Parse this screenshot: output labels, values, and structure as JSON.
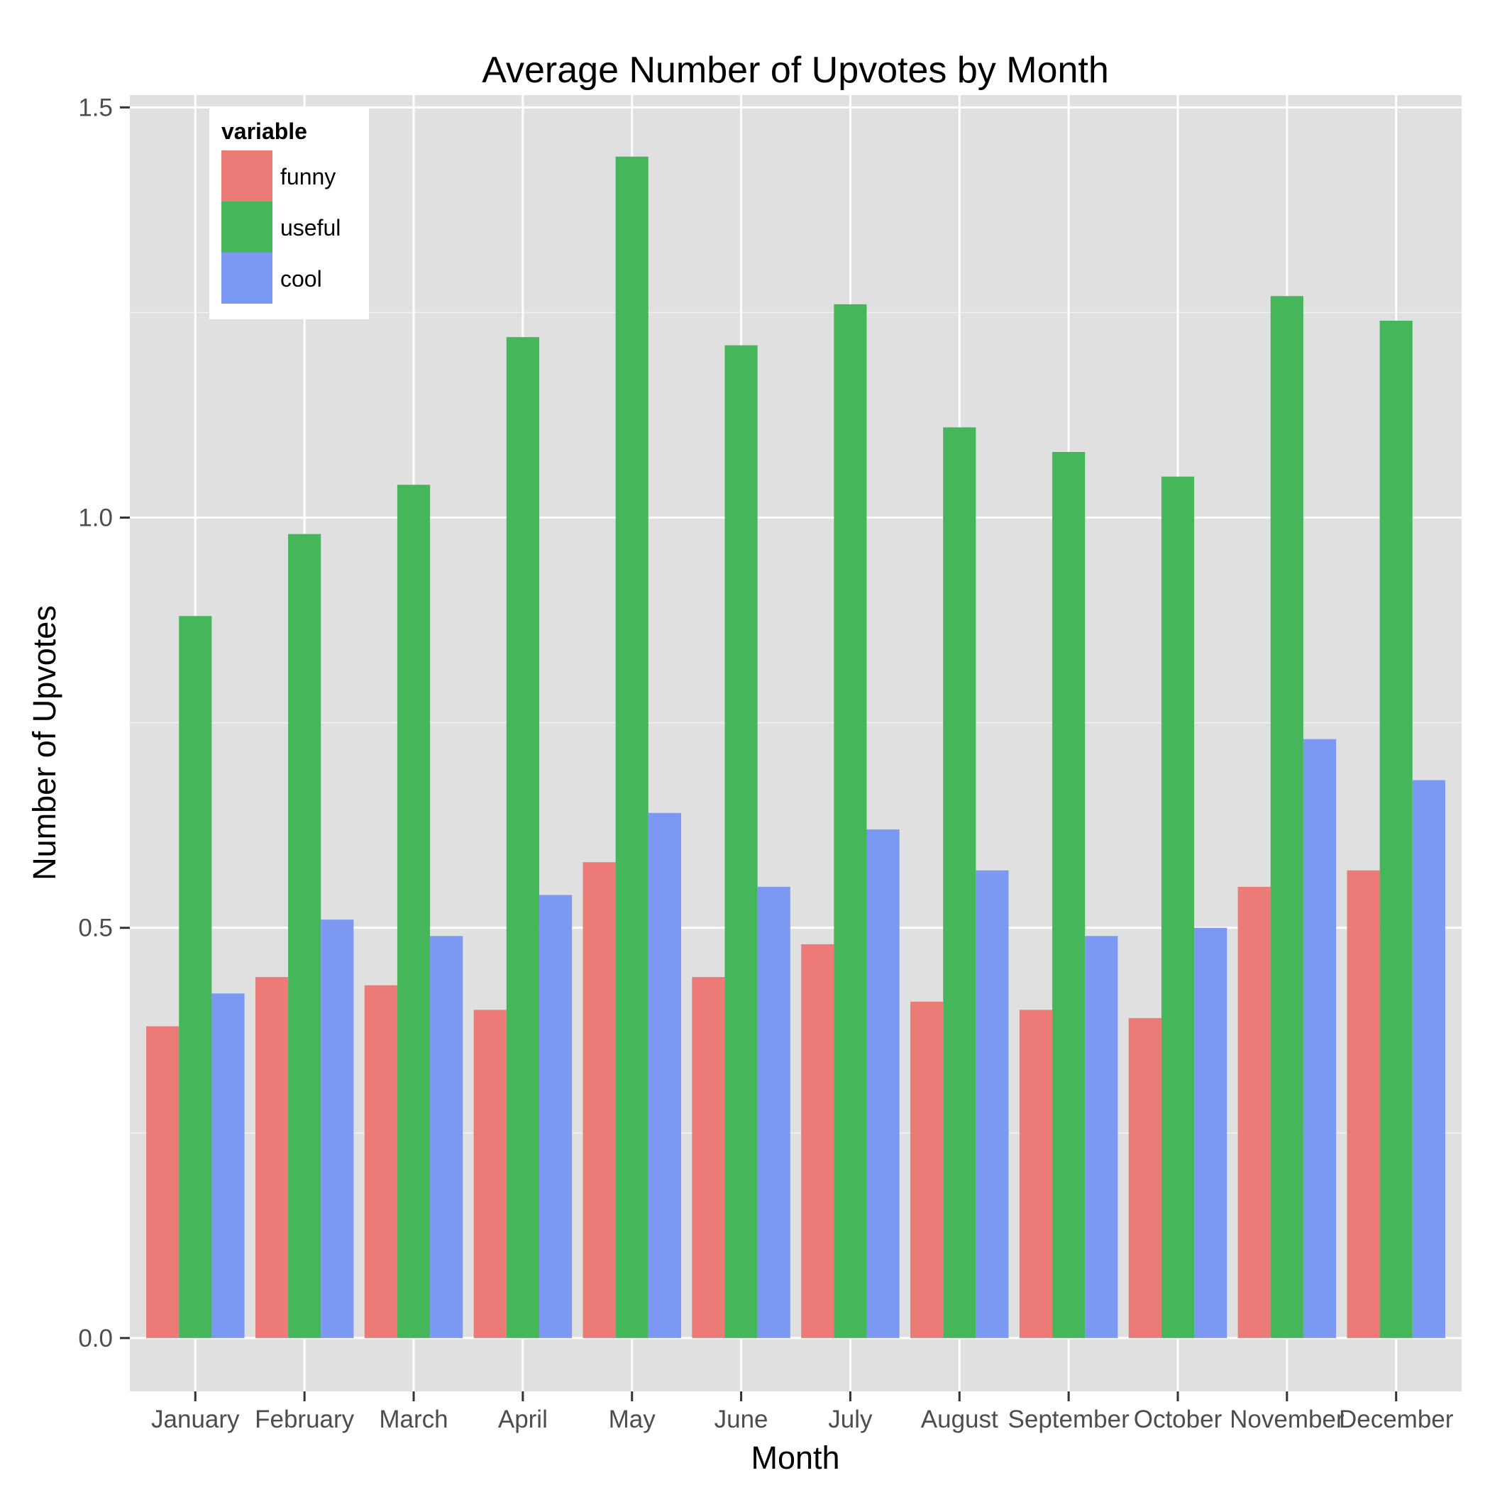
{
  "chart_data": {
    "type": "bar",
    "title": "Average Number of Upvotes by Month",
    "xlabel": "Month",
    "ylabel": "Number of Upvotes",
    "ylim": [
      -0.065,
      1.515
    ],
    "y_ticks": [
      "0.0",
      "0.5",
      "1.0",
      "1.5"
    ],
    "y_tick_values": [
      0,
      0.5,
      1.0,
      1.5
    ],
    "grid": true,
    "legend_placement": "top-left",
    "legend_title": "variable",
    "categories": [
      "January",
      "February",
      "March",
      "April",
      "May",
      "June",
      "July",
      "August",
      "September",
      "October",
      "November",
      "December"
    ],
    "series": [
      {
        "name": "funny",
        "color": "#ec7a76",
        "values": [
          0.38,
          0.44,
          0.43,
          0.4,
          0.58,
          0.44,
          0.48,
          0.41,
          0.4,
          0.39,
          0.55,
          0.57
        ]
      },
      {
        "name": "useful",
        "color": "#45b75a",
        "values": [
          0.88,
          0.98,
          1.04,
          1.22,
          1.44,
          1.21,
          1.26,
          1.11,
          1.08,
          1.05,
          1.27,
          1.24
        ]
      },
      {
        "name": "cool",
        "color": "#7b98f2",
        "values": [
          0.42,
          0.51,
          0.49,
          0.54,
          0.64,
          0.55,
          0.62,
          0.57,
          0.49,
          0.5,
          0.73,
          0.68
        ]
      }
    ]
  }
}
